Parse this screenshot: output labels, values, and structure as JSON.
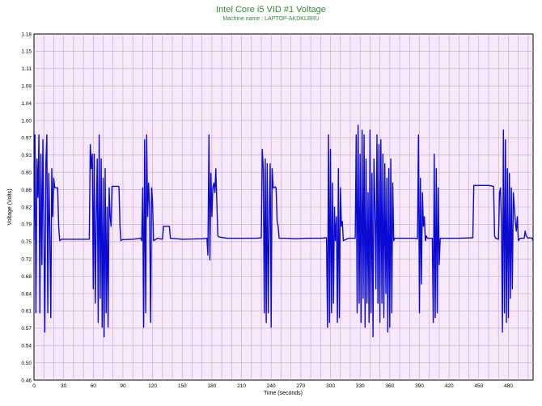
{
  "chart_data": {
    "type": "line",
    "title": "Intel Core i5 VID #1 Voltage",
    "subtitle": "Machine name : LAPTOP-AKDKLBRU",
    "xlabel": "Time (seconds)",
    "ylabel": "Voltage (Volts)",
    "xlim": [
      0,
      505
    ],
    "ylim": [
      0.46,
      1.18
    ],
    "x_ticks": [
      0,
      30,
      60,
      90,
      120,
      150,
      180,
      210,
      240,
      270,
      300,
      330,
      360,
      390,
      420,
      450,
      480
    ],
    "y_ticks": [
      "0.46",
      "0.50",
      "0.54",
      "0.57",
      "0.61",
      "0.64",
      "0.68",
      "0.72",
      "0.75",
      "0.79",
      "0.82",
      "0.86",
      "0.90",
      "0.93",
      "0.97",
      "1.00",
      "1.04",
      "1.08",
      "1.11",
      "1.15",
      "1.18"
    ],
    "grid": true,
    "colors": {
      "line": "#0a0ad2",
      "plot_bg": "#f7e9fb",
      "grid": "#c8a0c8",
      "title": "#2e8b2e"
    },
    "series": [
      {
        "values": [
          [
            0,
            0.75
          ],
          [
            1,
            0.97
          ],
          [
            2,
            0.6
          ],
          [
            3,
            0.92
          ],
          [
            4,
            0.84
          ],
          [
            5,
            0.97
          ],
          [
            6,
            0.6
          ],
          [
            7,
            0.93
          ],
          [
            8,
            0.7
          ],
          [
            9,
            0.96
          ],
          [
            10,
            0.78
          ],
          [
            11,
            0.56
          ],
          [
            12,
            0.91
          ],
          [
            13,
            0.97
          ],
          [
            14,
            0.6
          ],
          [
            15,
            0.89
          ],
          [
            16,
            0.78
          ],
          [
            17,
            0.59
          ],
          [
            18,
            0.9
          ],
          [
            19,
            0.8
          ],
          [
            20,
            0.88
          ],
          [
            21,
            0.86
          ],
          [
            22,
            0.86
          ],
          [
            23,
            0.86
          ],
          [
            24,
            0.86
          ],
          [
            25,
            0.78
          ],
          [
            26,
            0.75
          ],
          [
            28,
            0.753
          ],
          [
            35,
            0.753
          ],
          [
            45,
            0.753
          ],
          [
            55,
            0.753
          ],
          [
            56,
            0.753
          ],
          [
            57,
            0.95
          ],
          [
            58,
            0.9
          ],
          [
            59,
            0.93
          ],
          [
            60,
            0.65
          ],
          [
            61,
            0.93
          ],
          [
            62,
            0.62
          ],
          [
            63,
            0.8
          ],
          [
            64,
            0.92
          ],
          [
            65,
            0.58
          ],
          [
            66,
            0.97
          ],
          [
            67,
            0.63
          ],
          [
            68,
            0.92
          ],
          [
            69,
            0.57
          ],
          [
            70,
            0.88
          ],
          [
            71,
            0.55
          ],
          [
            72,
            0.9
          ],
          [
            73,
            0.6
          ],
          [
            74,
            0.82
          ],
          [
            75,
            0.57
          ],
          [
            76,
            0.86
          ],
          [
            77,
            0.8
          ],
          [
            78,
            0.78
          ],
          [
            79,
            0.863
          ],
          [
            85,
            0.863
          ],
          [
            86,
            0.862
          ],
          [
            87,
            0.78
          ],
          [
            88,
            0.75
          ],
          [
            89,
            0.752
          ],
          [
            100,
            0.753
          ],
          [
            108,
            0.755
          ],
          [
            109,
            0.75
          ],
          [
            110,
            0.86
          ],
          [
            111,
            0.57
          ],
          [
            112,
            0.96
          ],
          [
            113,
            0.6
          ],
          [
            114,
            0.97
          ],
          [
            115,
            0.8
          ],
          [
            116,
            0.87
          ],
          [
            117,
            0.82
          ],
          [
            118,
            0.58
          ],
          [
            119,
            0.86
          ],
          [
            120,
            0.83
          ],
          [
            121,
            0.75
          ],
          [
            125,
            0.755
          ],
          [
            130,
            0.753
          ],
          [
            131,
            0.78
          ],
          [
            137,
            0.78
          ],
          [
            138,
            0.755
          ],
          [
            150,
            0.753
          ],
          [
            170,
            0.754
          ],
          [
            175,
            0.755
          ],
          [
            176,
            0.72
          ],
          [
            177,
            0.97
          ],
          [
            178,
            0.71
          ],
          [
            179,
            0.89
          ],
          [
            180,
            0.8
          ],
          [
            181,
            0.86
          ],
          [
            182,
            0.87
          ],
          [
            183,
            0.85
          ],
          [
            184,
            0.9
          ],
          [
            185,
            0.83
          ],
          [
            186,
            0.76
          ],
          [
            187,
            0.758
          ],
          [
            195,
            0.755
          ],
          [
            205,
            0.755
          ],
          [
            215,
            0.755
          ],
          [
            225,
            0.755
          ],
          [
            230,
            0.756
          ],
          [
            231,
            0.94
          ],
          [
            232,
            0.9
          ],
          [
            233,
            0.6
          ],
          [
            234,
            0.92
          ],
          [
            235,
            0.58
          ],
          [
            236,
            0.91
          ],
          [
            237,
            0.6
          ],
          [
            238,
            0.8
          ],
          [
            239,
            0.91
          ],
          [
            240,
            0.57
          ],
          [
            241,
            0.9
          ],
          [
            242,
            0.86
          ],
          [
            243,
            0.86
          ],
          [
            244,
            0.862
          ],
          [
            245,
            0.86
          ],
          [
            246,
            0.79
          ],
          [
            247,
            0.78
          ],
          [
            248,
            0.755
          ],
          [
            255,
            0.755
          ],
          [
            265,
            0.754
          ],
          [
            275,
            0.755
          ],
          [
            290,
            0.755
          ],
          [
            296,
            0.756
          ],
          [
            297,
            0.57
          ],
          [
            298,
            0.97
          ],
          [
            299,
            0.58
          ],
          [
            300,
            0.94
          ],
          [
            301,
            0.6
          ],
          [
            302,
            0.87
          ],
          [
            303,
            0.62
          ],
          [
            304,
            0.82
          ],
          [
            305,
            0.75
          ],
          [
            306,
            0.8
          ],
          [
            307,
            0.58
          ],
          [
            308,
            0.9
          ],
          [
            309,
            0.59
          ],
          [
            310,
            0.86
          ],
          [
            311,
            0.78
          ],
          [
            312,
            0.79
          ],
          [
            313,
            0.75
          ],
          [
            318,
            0.755
          ],
          [
            325,
            0.755
          ],
          [
            326,
            0.97
          ],
          [
            327,
            0.6
          ],
          [
            328,
            0.99
          ],
          [
            329,
            0.62
          ],
          [
            330,
            0.93
          ],
          [
            331,
            0.58
          ],
          [
            332,
            0.98
          ],
          [
            333,
            0.63
          ],
          [
            334,
            0.97
          ],
          [
            335,
            0.57
          ],
          [
            336,
            0.92
          ],
          [
            337,
            0.62
          ],
          [
            338,
            0.85
          ],
          [
            339,
            0.58
          ],
          [
            340,
            0.98
          ],
          [
            341,
            0.6
          ],
          [
            342,
            0.89
          ],
          [
            343,
            0.55
          ],
          [
            344,
            0.92
          ],
          [
            345,
            0.82
          ],
          [
            346,
            0.65
          ],
          [
            347,
            0.97
          ],
          [
            348,
            0.62
          ],
          [
            349,
            0.95
          ],
          [
            350,
            0.58
          ],
          [
            351,
            0.96
          ],
          [
            352,
            0.62
          ],
          [
            353,
            0.93
          ],
          [
            354,
            0.59
          ],
          [
            355,
            0.91
          ],
          [
            356,
            0.64
          ],
          [
            357,
            0.88
          ],
          [
            358,
            0.56
          ],
          [
            359,
            0.9
          ],
          [
            360,
            0.57
          ],
          [
            361,
            0.92
          ],
          [
            362,
            0.6
          ],
          [
            363,
            0.87
          ],
          [
            364,
            0.75
          ],
          [
            365,
            0.755
          ],
          [
            375,
            0.755
          ],
          [
            385,
            0.755
          ],
          [
            388,
            0.754
          ],
          [
            389,
            0.97
          ],
          [
            390,
            0.6
          ],
          [
            391,
            0.88
          ],
          [
            392,
            0.66
          ],
          [
            393,
            0.85
          ],
          [
            394,
            0.78
          ],
          [
            395,
            0.8
          ],
          [
            396,
            0.75
          ],
          [
            397,
            0.76
          ],
          [
            398,
            0.755
          ],
          [
            403,
            0.755
          ],
          [
            404,
            0.58
          ],
          [
            405,
            0.93
          ],
          [
            406,
            0.59
          ],
          [
            407,
            0.9
          ],
          [
            408,
            0.6
          ],
          [
            409,
            0.86
          ],
          [
            410,
            0.7
          ],
          [
            411,
            0.755
          ],
          [
            415,
            0.755
          ],
          [
            430,
            0.755
          ],
          [
            444,
            0.756
          ],
          [
            445,
            0.865
          ],
          [
            460,
            0.865
          ],
          [
            465,
            0.863
          ],
          [
            466,
            0.76
          ],
          [
            467,
            0.755
          ],
          [
            470,
            0.753
          ],
          [
            471,
            0.85
          ],
          [
            472,
            0.86
          ],
          [
            473,
            0.79
          ],
          [
            474,
            0.56
          ],
          [
            475,
            0.98
          ],
          [
            476,
            0.6
          ],
          [
            477,
            0.96
          ],
          [
            478,
            0.58
          ],
          [
            479,
            0.9
          ],
          [
            480,
            0.59
          ],
          [
            481,
            0.89
          ],
          [
            482,
            0.63
          ],
          [
            483,
            0.86
          ],
          [
            484,
            0.65
          ],
          [
            485,
            0.85
          ],
          [
            486,
            0.82
          ],
          [
            487,
            0.79
          ],
          [
            488,
            0.77
          ],
          [
            489,
            0.8
          ],
          [
            490,
            0.75
          ],
          [
            492,
            0.755
          ],
          [
            496,
            0.755
          ],
          [
            497,
            0.77
          ],
          [
            498,
            0.76
          ],
          [
            500,
            0.755
          ],
          [
            502,
            0.756
          ],
          [
            504,
            0.755
          ],
          [
            505,
            0.75
          ]
        ]
      }
    ]
  }
}
